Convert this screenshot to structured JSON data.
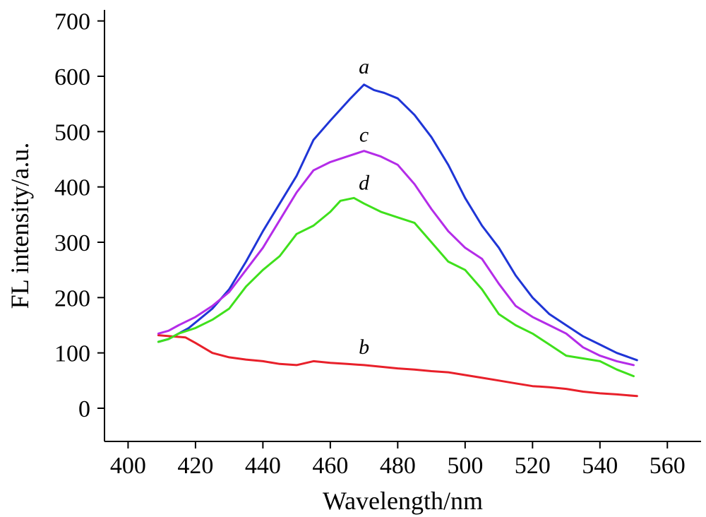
{
  "chart_data": {
    "type": "line",
    "title": "",
    "xlabel": "Wavelength/nm",
    "ylabel": "FL intensity/a.u.",
    "xlim": [
      393,
      570
    ],
    "ylim": [
      -60,
      720
    ],
    "xticks": [
      400,
      420,
      440,
      460,
      480,
      500,
      520,
      540,
      560
    ],
    "yticks": [
      0,
      100,
      200,
      300,
      400,
      500,
      600,
      700
    ],
    "grid": false,
    "series": [
      {
        "name": "a",
        "color": "#1f35d6",
        "x": [
          409,
          412,
          415,
          418,
          421,
          425,
          430,
          435,
          440,
          445,
          450,
          455,
          460,
          463,
          466,
          470,
          473,
          476,
          480,
          485,
          490,
          495,
          500,
          505,
          510,
          515,
          520,
          525,
          530,
          535,
          540,
          545,
          551
        ],
        "y": [
          120,
          125,
          135,
          145,
          160,
          180,
          215,
          265,
          320,
          370,
          420,
          485,
          520,
          540,
          560,
          585,
          575,
          570,
          560,
          530,
          490,
          440,
          380,
          330,
          290,
          240,
          200,
          170,
          150,
          130,
          115,
          100,
          87
        ]
      },
      {
        "name": "b",
        "color": "#e8202a",
        "x": [
          409,
          413,
          417,
          420,
          425,
          430,
          435,
          440,
          445,
          450,
          455,
          460,
          465,
          470,
          475,
          480,
          485,
          490,
          495,
          500,
          505,
          510,
          515,
          520,
          525,
          530,
          535,
          540,
          545,
          551
        ],
        "y": [
          132,
          130,
          128,
          118,
          100,
          92,
          88,
          85,
          80,
          78,
          85,
          82,
          80,
          78,
          75,
          72,
          70,
          67,
          65,
          60,
          55,
          50,
          45,
          40,
          38,
          35,
          30,
          27,
          25,
          22
        ]
      },
      {
        "name": "c",
        "color": "#b42ce8",
        "x": [
          409,
          412,
          415,
          420,
          425,
          430,
          435,
          440,
          445,
          450,
          455,
          460,
          465,
          470,
          475,
          480,
          485,
          490,
          495,
          500,
          505,
          510,
          515,
          520,
          525,
          530,
          535,
          540,
          545,
          550
        ],
        "y": [
          135,
          140,
          150,
          165,
          185,
          210,
          250,
          290,
          340,
          390,
          430,
          445,
          455,
          465,
          455,
          440,
          405,
          360,
          320,
          290,
          270,
          225,
          185,
          165,
          150,
          135,
          110,
          95,
          85,
          78
        ]
      },
      {
        "name": "d",
        "color": "#3fe01c",
        "x": [
          409,
          412,
          415,
          420,
          425,
          430,
          435,
          440,
          445,
          450,
          455,
          460,
          463,
          467,
          470,
          475,
          480,
          485,
          490,
          495,
          500,
          505,
          510,
          515,
          520,
          525,
          530,
          535,
          540,
          545,
          550
        ],
        "y": [
          120,
          125,
          135,
          145,
          160,
          180,
          220,
          250,
          275,
          315,
          330,
          355,
          375,
          380,
          370,
          355,
          345,
          335,
          300,
          265,
          250,
          215,
          170,
          150,
          135,
          115,
          95,
          90,
          85,
          70,
          58
        ]
      }
    ],
    "annotations": [
      {
        "text": "a",
        "x": 470,
        "y": 605
      },
      {
        "text": "c",
        "x": 470,
        "y": 482
      },
      {
        "text": "d",
        "x": 470,
        "y": 395
      },
      {
        "text": "b",
        "x": 470,
        "y": 98
      }
    ]
  }
}
